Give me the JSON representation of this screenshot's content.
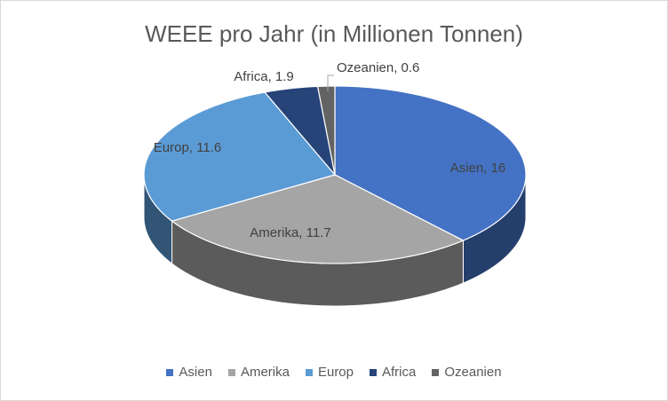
{
  "chart_data": {
    "type": "pie",
    "style": "3d",
    "title": "WEEE pro Jahr (in Millionen Tonnen)",
    "categories": [
      "Asien",
      "Amerika",
      "Europ",
      "Africa",
      "Ozeanien"
    ],
    "values": [
      16,
      11.7,
      11.6,
      1.9,
      0.6
    ],
    "data_labels": [
      "Asien, 16",
      "Amerika, 11.7",
      "Europ, 11.6",
      "Africa, 1.9",
      "Ozeanien, 0.6"
    ],
    "colors": [
      "#4472C4",
      "#A5A5A5",
      "#5B9BD5",
      "#264478",
      "#636363"
    ],
    "legend_position": "bottom"
  }
}
